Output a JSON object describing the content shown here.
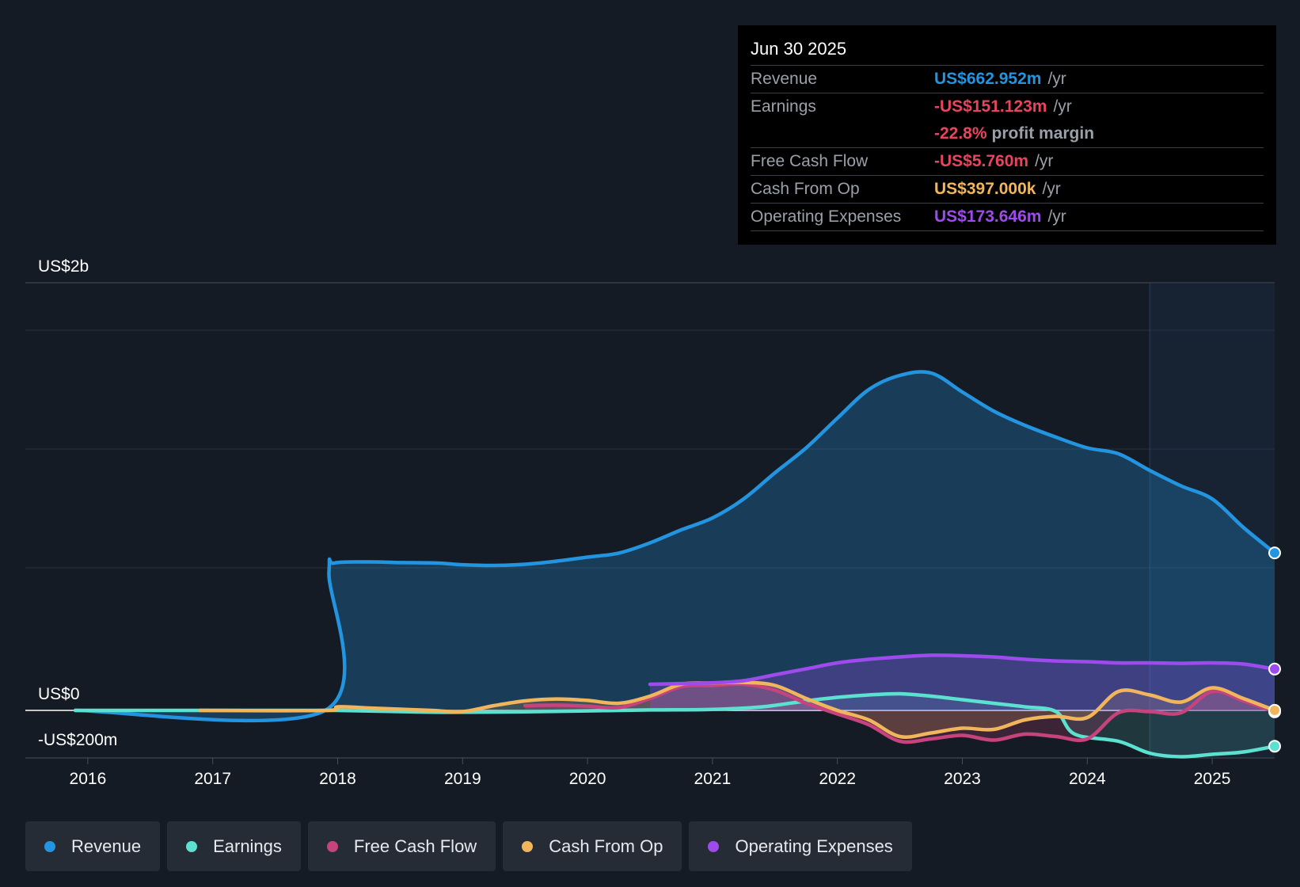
{
  "tooltip": {
    "date": "Jun 30 2025",
    "rows": [
      {
        "label": "Revenue",
        "value": "US$662.952m",
        "unit": "/yr",
        "color": "#2394df"
      },
      {
        "label": "Earnings",
        "value": "-US$151.123m",
        "unit": "/yr",
        "color": "#e64560"
      },
      {
        "label": "",
        "value": "-22.8%",
        "unit": "profit margin",
        "color": "#e64560"
      },
      {
        "label": "Free Cash Flow",
        "value": "-US$5.760m",
        "unit": "/yr",
        "color": "#e64560"
      },
      {
        "label": "Cash From Op",
        "value": "US$397.000k",
        "unit": "/yr",
        "color": "#f1b65c"
      },
      {
        "label": "Operating Expenses",
        "value": "US$173.646m",
        "unit": "/yr",
        "color": "#9d4bec"
      }
    ]
  },
  "legend": [
    {
      "label": "Revenue",
      "color": "#2394df"
    },
    {
      "label": "Earnings",
      "color": "#5ce0cf"
    },
    {
      "label": "Free Cash Flow",
      "color": "#c7437d"
    },
    {
      "label": "Cash From Op",
      "color": "#f1b65c"
    },
    {
      "label": "Operating Expenses",
      "color": "#9d4bec"
    }
  ],
  "chart_data": {
    "type": "area",
    "title": "",
    "xlabel": "",
    "ylabel": "",
    "y_unit": "US$ millions",
    "ylim": [
      -200,
      1800
    ],
    "y_axis_labels": [
      {
        "label": "US$2b",
        "value": 1800
      },
      {
        "label": "US$0",
        "value": 0
      },
      {
        "label": "-US$200m",
        "value": -200
      }
    ],
    "x_ticks": [
      2016,
      2017,
      2018,
      2019,
      2020,
      2021,
      2022,
      2023,
      2024,
      2025
    ],
    "x_tick_labels": [
      "2016",
      "2017",
      "2018",
      "2019",
      "2020",
      "2021",
      "2022",
      "2023",
      "2024",
      "2025"
    ],
    "xlim": [
      2015.5,
      2025.5
    ],
    "forecast_start": 2024.5,
    "series": [
      {
        "name": "Revenue",
        "color": "#2394df",
        "points": [
          [
            2015.9,
            0
          ],
          [
            2017.9,
            0
          ],
          [
            2017.93,
            580
          ],
          [
            2017.97,
            620
          ],
          [
            2018.25,
            625
          ],
          [
            2018.5,
            622
          ],
          [
            2018.8,
            620
          ],
          [
            2019.0,
            613
          ],
          [
            2019.25,
            610
          ],
          [
            2019.5,
            615
          ],
          [
            2019.75,
            628
          ],
          [
            2020.0,
            645
          ],
          [
            2020.25,
            662
          ],
          [
            2020.5,
            705
          ],
          [
            2020.75,
            760
          ],
          [
            2021.0,
            810
          ],
          [
            2021.25,
            890
          ],
          [
            2021.5,
            1000
          ],
          [
            2021.75,
            1105
          ],
          [
            2022.0,
            1230
          ],
          [
            2022.25,
            1350
          ],
          [
            2022.5,
            1410
          ],
          [
            2022.75,
            1420
          ],
          [
            2023.0,
            1340
          ],
          [
            2023.25,
            1260
          ],
          [
            2023.5,
            1200
          ],
          [
            2023.75,
            1150
          ],
          [
            2024.0,
            1105
          ],
          [
            2024.25,
            1080
          ],
          [
            2024.5,
            1010
          ],
          [
            2024.75,
            945
          ],
          [
            2025.0,
            890
          ],
          [
            2025.25,
            770
          ],
          [
            2025.5,
            663
          ]
        ]
      },
      {
        "name": "Earnings",
        "color": "#5ce0cf",
        "points": [
          [
            2015.9,
            0
          ],
          [
            2017.9,
            0
          ],
          [
            2018.0,
            0
          ],
          [
            2018.5,
            -5
          ],
          [
            2018.9,
            -8
          ],
          [
            2019.5,
            -6
          ],
          [
            2020.0,
            -2
          ],
          [
            2020.5,
            2
          ],
          [
            2021.0,
            4
          ],
          [
            2021.4,
            15
          ],
          [
            2021.75,
            40
          ],
          [
            2022.0,
            55
          ],
          [
            2022.25,
            65
          ],
          [
            2022.5,
            70
          ],
          [
            2022.75,
            60
          ],
          [
            2023.0,
            45
          ],
          [
            2023.25,
            30
          ],
          [
            2023.5,
            15
          ],
          [
            2023.75,
            -5
          ],
          [
            2023.9,
            -100
          ],
          [
            2024.25,
            -130
          ],
          [
            2024.5,
            -180
          ],
          [
            2024.75,
            -195
          ],
          [
            2025.0,
            -185
          ],
          [
            2025.25,
            -175
          ],
          [
            2025.5,
            -151
          ]
        ]
      },
      {
        "name": "Free Cash Flow",
        "color": "#c7437d",
        "points": [
          [
            2019.5,
            20
          ],
          [
            2019.75,
            22
          ],
          [
            2020.0,
            18
          ],
          [
            2020.25,
            12
          ],
          [
            2020.5,
            50
          ],
          [
            2020.75,
            100
          ],
          [
            2021.0,
            105
          ],
          [
            2021.25,
            110
          ],
          [
            2021.5,
            85
          ],
          [
            2021.75,
            30
          ],
          [
            2022.0,
            -15
          ],
          [
            2022.25,
            -60
          ],
          [
            2022.5,
            -130
          ],
          [
            2022.75,
            -120
          ],
          [
            2023.0,
            -105
          ],
          [
            2023.25,
            -125
          ],
          [
            2023.5,
            -100
          ],
          [
            2023.75,
            -110
          ],
          [
            2024.0,
            -120
          ],
          [
            2024.25,
            -10
          ],
          [
            2024.5,
            -5
          ],
          [
            2024.75,
            -10
          ],
          [
            2025.0,
            80
          ],
          [
            2025.25,
            40
          ],
          [
            2025.5,
            -6
          ]
        ]
      },
      {
        "name": "Cash From Op",
        "color": "#f1b65c",
        "points": [
          [
            2016.9,
            0
          ],
          [
            2017.9,
            0
          ],
          [
            2018.0,
            15
          ],
          [
            2018.25,
            10
          ],
          [
            2018.5,
            5
          ],
          [
            2018.75,
            0
          ],
          [
            2019.0,
            -5
          ],
          [
            2019.25,
            20
          ],
          [
            2019.5,
            40
          ],
          [
            2019.75,
            48
          ],
          [
            2020.0,
            42
          ],
          [
            2020.25,
            30
          ],
          [
            2020.5,
            60
          ],
          [
            2020.75,
            110
          ],
          [
            2021.0,
            115
          ],
          [
            2021.25,
            118
          ],
          [
            2021.5,
            105
          ],
          [
            2021.75,
            50
          ],
          [
            2022.0,
            0
          ],
          [
            2022.25,
            -40
          ],
          [
            2022.5,
            -110
          ],
          [
            2022.75,
            -95
          ],
          [
            2023.0,
            -75
          ],
          [
            2023.25,
            -80
          ],
          [
            2023.5,
            -40
          ],
          [
            2023.75,
            -25
          ],
          [
            2024.0,
            -30
          ],
          [
            2024.25,
            80
          ],
          [
            2024.5,
            65
          ],
          [
            2024.75,
            35
          ],
          [
            2025.0,
            95
          ],
          [
            2025.25,
            50
          ],
          [
            2025.5,
            0.4
          ]
        ]
      },
      {
        "name": "Operating Expenses",
        "color": "#9d4bec",
        "points": [
          [
            2020.5,
            110
          ],
          [
            2020.75,
            113
          ],
          [
            2021.0,
            116
          ],
          [
            2021.25,
            125
          ],
          [
            2021.5,
            150
          ],
          [
            2021.75,
            175
          ],
          [
            2022.0,
            200
          ],
          [
            2022.25,
            215
          ],
          [
            2022.5,
            225
          ],
          [
            2022.75,
            232
          ],
          [
            2023.0,
            230
          ],
          [
            2023.25,
            225
          ],
          [
            2023.5,
            215
          ],
          [
            2023.75,
            208
          ],
          [
            2024.0,
            205
          ],
          [
            2024.25,
            200
          ],
          [
            2024.5,
            200
          ],
          [
            2024.75,
            198
          ],
          [
            2025.0,
            200
          ],
          [
            2025.25,
            195
          ],
          [
            2025.5,
            174
          ]
        ]
      }
    ]
  }
}
